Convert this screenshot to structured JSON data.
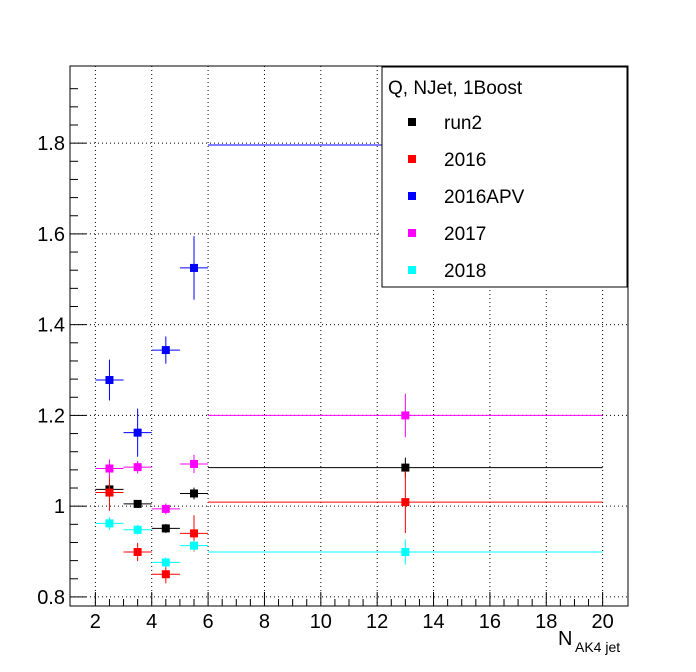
{
  "chart_data": {
    "type": "scatter",
    "xlabel": "N",
    "xlabel_sub": "AK4 jet",
    "ylabel": "",
    "xlim": [
      1.1,
      20.9
    ],
    "ylim": [
      0.78,
      1.97
    ],
    "grid": true,
    "legend_title": "Q, NJet, 1Boost",
    "legend_position": "top-right",
    "xticks": [
      2,
      4,
      6,
      8,
      10,
      12,
      14,
      16,
      18,
      20
    ],
    "yticks": [
      0.8,
      1.0,
      1.2,
      1.4,
      1.6,
      1.8
    ],
    "ytick_labels": [
      "0.8",
      "1",
      "1.2",
      "1.4",
      "1.6",
      "1.8"
    ],
    "series": [
      {
        "name": "run2",
        "color": "#000000",
        "points": [
          {
            "x": 2.5,
            "xerr": 0.5,
            "y": 1.037,
            "yerr": 0.012
          },
          {
            "x": 3.5,
            "xerr": 0.5,
            "y": 1.005,
            "yerr": 0.008
          },
          {
            "x": 4.5,
            "xerr": 0.5,
            "y": 0.951,
            "yerr": 0.01
          },
          {
            "x": 5.5,
            "xerr": 0.5,
            "y": 1.028,
            "yerr": 0.013
          },
          {
            "x": 13.0,
            "xerr": 7.0,
            "y": 1.085,
            "yerr": 0.022
          }
        ]
      },
      {
        "name": "2016",
        "color": "#ff0000",
        "points": [
          {
            "x": 2.5,
            "xerr": 0.5,
            "y": 1.03,
            "yerr": 0.04
          },
          {
            "x": 3.5,
            "xerr": 0.5,
            "y": 0.899,
            "yerr": 0.02
          },
          {
            "x": 4.5,
            "xerr": 0.5,
            "y": 0.85,
            "yerr": 0.02
          },
          {
            "x": 5.5,
            "xerr": 0.5,
            "y": 0.94,
            "yerr": 0.04
          },
          {
            "x": 13.0,
            "xerr": 7.0,
            "y": 1.009,
            "yerr": 0.068
          }
        ]
      },
      {
        "name": "2016APV",
        "color": "#0000ff",
        "points": [
          {
            "x": 2.5,
            "xerr": 0.5,
            "y": 1.278,
            "yerr": 0.045
          },
          {
            "x": 3.5,
            "xerr": 0.5,
            "y": 1.162,
            "yerr": 0.053
          },
          {
            "x": 4.5,
            "xerr": 0.5,
            "y": 1.344,
            "yerr": 0.03
          },
          {
            "x": 5.5,
            "xerr": 0.5,
            "y": 1.525,
            "yerr": 0.07
          },
          {
            "x": 13.0,
            "xerr": 7.0,
            "y": 1.796,
            "yerr": 0.0
          }
        ]
      },
      {
        "name": "2017",
        "color": "#ff00ff",
        "points": [
          {
            "x": 2.5,
            "xerr": 0.5,
            "y": 1.083,
            "yerr": 0.02
          },
          {
            "x": 3.5,
            "xerr": 0.5,
            "y": 1.086,
            "yerr": 0.014
          },
          {
            "x": 4.5,
            "xerr": 0.5,
            "y": 0.994,
            "yerr": 0.012
          },
          {
            "x": 5.5,
            "xerr": 0.5,
            "y": 1.093,
            "yerr": 0.02
          },
          {
            "x": 13.0,
            "xerr": 7.0,
            "y": 1.2,
            "yerr": 0.048
          }
        ]
      },
      {
        "name": "2018",
        "color": "#00ffff",
        "points": [
          {
            "x": 2.5,
            "xerr": 0.5,
            "y": 0.962,
            "yerr": 0.014
          },
          {
            "x": 3.5,
            "xerr": 0.5,
            "y": 0.948,
            "yerr": 0.011
          },
          {
            "x": 4.5,
            "xerr": 0.5,
            "y": 0.876,
            "yerr": 0.011
          },
          {
            "x": 5.5,
            "xerr": 0.5,
            "y": 0.913,
            "yerr": 0.011
          },
          {
            "x": 13.0,
            "xerr": 7.0,
            "y": 0.899,
            "yerr": 0.028
          }
        ]
      }
    ]
  }
}
